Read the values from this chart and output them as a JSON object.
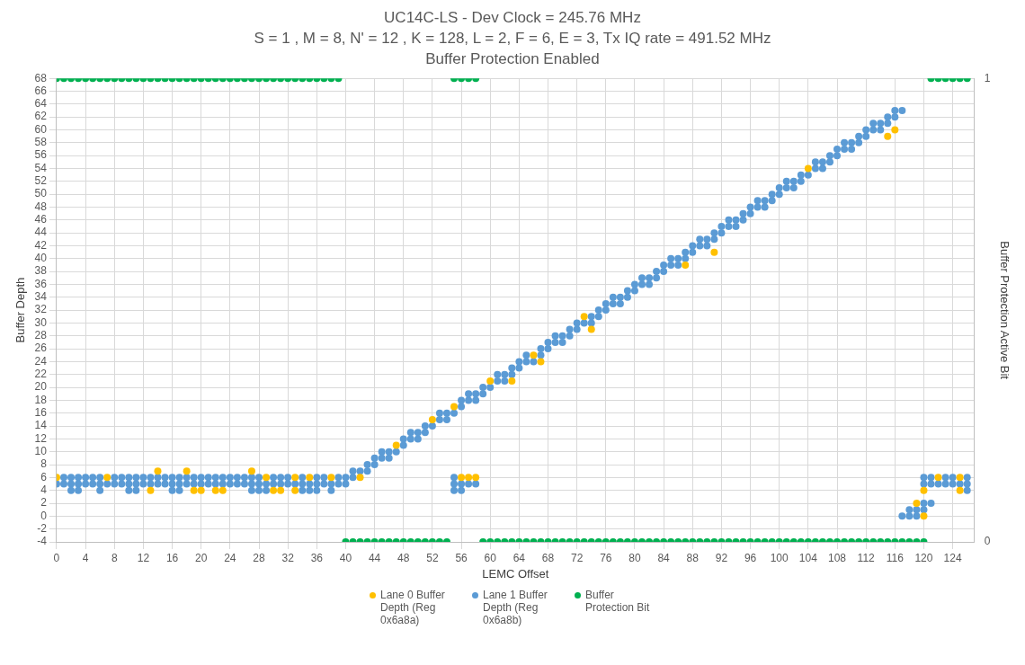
{
  "chart_data": {
    "type": "scatter",
    "title": "UC14C-LS - Dev Clock = 245.76 MHz",
    "subtitle": "S = 1 , M = 8, N' = 12 , K = 128, L = 2, F = 6, E = 3, Tx IQ rate = 491.52 MHz",
    "annotations": [
      "Buffer Protection Enabled"
    ],
    "xlabel": "LEMC Offset",
    "ylabel": "Buffer Depth",
    "y2label": "Buffer Protection Active Bit",
    "xlim": [
      0,
      127
    ],
    "xticks": [
      0,
      4,
      8,
      12,
      16,
      20,
      24,
      28,
      32,
      36,
      40,
      44,
      48,
      52,
      56,
      60,
      64,
      68,
      72,
      76,
      80,
      84,
      88,
      92,
      96,
      100,
      104,
      108,
      112,
      116,
      120,
      124
    ],
    "ylim": [
      -4,
      68
    ],
    "yticks": [
      -4,
      -2,
      0,
      2,
      4,
      6,
      8,
      10,
      12,
      14,
      16,
      18,
      20,
      22,
      24,
      26,
      28,
      30,
      32,
      34,
      36,
      38,
      40,
      42,
      44,
      46,
      48,
      50,
      52,
      54,
      56,
      58,
      60,
      62,
      64,
      66,
      68
    ],
    "y2lim": [
      0,
      1
    ],
    "y2ticks": [
      0,
      1
    ],
    "grid": true,
    "legend": "bottom",
    "marker": "circle",
    "series": [
      {
        "name": "Lane 0 Buffer Depth (Reg 0x6a8a)",
        "color": "#ffc000",
        "x": [
          0,
          7,
          13,
          14,
          18,
          19,
          20,
          22,
          23,
          27,
          29,
          30,
          31,
          33,
          33,
          35,
          38,
          42,
          47,
          52,
          55,
          56,
          57,
          58,
          60,
          63,
          66,
          67,
          73,
          74,
          87,
          91,
          104,
          115,
          116,
          119,
          120,
          120,
          122,
          125,
          125
        ],
        "values": [
          6,
          6,
          4,
          7,
          7,
          4,
          4,
          4,
          4,
          7,
          6,
          4,
          4,
          6,
          4,
          6,
          6,
          6,
          11,
          15,
          17,
          6,
          6,
          6,
          21,
          21,
          25,
          24,
          31,
          29,
          39,
          41,
          54,
          59,
          60,
          2,
          0,
          4,
          6,
          6,
          4
        ]
      },
      {
        "name": "Lane 1 Buffer Depth (Reg 0x6a8b)",
        "color": "#5b9bd5",
        "x": [
          0,
          1,
          1,
          2,
          2,
          2,
          3,
          3,
          3,
          4,
          4,
          5,
          5,
          6,
          6,
          6,
          7,
          8,
          8,
          9,
          9,
          10,
          10,
          10,
          11,
          11,
          11,
          12,
          12,
          13,
          13,
          14,
          14,
          15,
          15,
          16,
          16,
          16,
          17,
          17,
          17,
          18,
          18,
          19,
          19,
          20,
          20,
          21,
          21,
          22,
          22,
          23,
          23,
          24,
          24,
          25,
          25,
          26,
          26,
          27,
          27,
          27,
          28,
          28,
          28,
          29,
          29,
          30,
          30,
          31,
          31,
          32,
          32,
          33,
          34,
          34,
          34,
          35,
          35,
          36,
          36,
          36,
          37,
          37,
          38,
          38,
          39,
          39,
          40,
          40,
          41,
          41,
          42,
          43,
          43,
          44,
          44,
          45,
          45,
          46,
          46,
          47,
          48,
          48,
          49,
          49,
          50,
          50,
          51,
          51,
          52,
          53,
          53,
          54,
          54,
          55,
          55,
          55,
          55,
          56,
          56,
          56,
          56,
          57,
          57,
          57,
          58,
          58,
          58,
          59,
          59,
          60,
          61,
          61,
          62,
          62,
          63,
          63,
          64,
          64,
          65,
          65,
          66,
          67,
          67,
          68,
          68,
          69,
          69,
          70,
          70,
          71,
          71,
          72,
          72,
          73,
          74,
          74,
          75,
          75,
          76,
          76,
          77,
          77,
          78,
          78,
          79,
          79,
          80,
          80,
          81,
          81,
          82,
          82,
          83,
          83,
          84,
          84,
          85,
          85,
          86,
          86,
          87,
          87,
          88,
          88,
          89,
          89,
          90,
          90,
          91,
          91,
          92,
          92,
          93,
          93,
          94,
          94,
          95,
          95,
          96,
          96,
          97,
          97,
          98,
          98,
          99,
          99,
          100,
          100,
          101,
          101,
          102,
          102,
          103,
          103,
          104,
          105,
          105,
          106,
          106,
          107,
          107,
          108,
          108,
          109,
          109,
          110,
          110,
          111,
          111,
          112,
          112,
          113,
          113,
          114,
          114,
          115,
          115,
          116,
          116,
          117,
          117,
          118,
          118,
          119,
          119,
          120,
          120,
          120,
          120,
          121,
          121,
          121,
          122,
          123,
          123,
          124,
          124,
          125,
          126,
          126,
          126
        ],
        "values": [
          5,
          5,
          6,
          5,
          6,
          4,
          5,
          6,
          4,
          5,
          6,
          5,
          6,
          5,
          6,
          4,
          5,
          5,
          6,
          5,
          6,
          5,
          6,
          4,
          5,
          6,
          4,
          5,
          6,
          5,
          6,
          5,
          6,
          5,
          6,
          5,
          6,
          4,
          5,
          6,
          4,
          5,
          6,
          5,
          6,
          5,
          6,
          5,
          6,
          5,
          6,
          5,
          6,
          5,
          6,
          5,
          6,
          5,
          6,
          5,
          6,
          4,
          5,
          6,
          4,
          5,
          4,
          5,
          6,
          5,
          6,
          5,
          6,
          5,
          5,
          6,
          4,
          5,
          4,
          5,
          6,
          4,
          5,
          6,
          5,
          4,
          5,
          6,
          5,
          6,
          6,
          7,
          7,
          7,
          8,
          8,
          9,
          9,
          10,
          9,
          10,
          10,
          11,
          12,
          12,
          13,
          12,
          13,
          13,
          14,
          14,
          15,
          16,
          15,
          16,
          16,
          6,
          5,
          4,
          17,
          18,
          5,
          4,
          18,
          19,
          5,
          18,
          19,
          5,
          19,
          20,
          20,
          21,
          22,
          21,
          22,
          22,
          23,
          23,
          24,
          24,
          25,
          24,
          25,
          26,
          26,
          27,
          27,
          28,
          27,
          28,
          28,
          29,
          29,
          30,
          30,
          30,
          31,
          31,
          32,
          32,
          33,
          33,
          34,
          33,
          34,
          34,
          35,
          35,
          36,
          36,
          37,
          36,
          37,
          37,
          38,
          38,
          39,
          39,
          40,
          39,
          40,
          40,
          41,
          41,
          42,
          42,
          43,
          42,
          43,
          43,
          44,
          44,
          45,
          45,
          46,
          45,
          46,
          46,
          47,
          47,
          48,
          48,
          49,
          48,
          49,
          49,
          50,
          50,
          51,
          51,
          52,
          51,
          52,
          52,
          53,
          53,
          54,
          55,
          54,
          55,
          55,
          56,
          56,
          57,
          57,
          58,
          57,
          58,
          58,
          59,
          59,
          60,
          60,
          61,
          60,
          61,
          61,
          62,
          62,
          63,
          63,
          0,
          0,
          1,
          0,
          1,
          1,
          2,
          5,
          6,
          2,
          5,
          6,
          5,
          5,
          6,
          5,
          6,
          5,
          4,
          5,
          6
        ]
      },
      {
        "name": "Buffer Protection Bit",
        "color": "#00b050",
        "axis": "y2",
        "x": [
          0,
          1,
          2,
          3,
          4,
          5,
          6,
          7,
          8,
          9,
          10,
          11,
          12,
          13,
          14,
          15,
          16,
          17,
          18,
          19,
          20,
          21,
          22,
          23,
          24,
          25,
          26,
          27,
          28,
          29,
          30,
          31,
          32,
          33,
          34,
          35,
          36,
          37,
          38,
          39,
          40,
          41,
          42,
          43,
          44,
          45,
          46,
          47,
          48,
          49,
          50,
          51,
          52,
          53,
          54,
          55,
          56,
          57,
          58,
          59,
          60,
          61,
          62,
          63,
          64,
          65,
          66,
          67,
          68,
          69,
          70,
          71,
          72,
          73,
          74,
          75,
          76,
          77,
          78,
          79,
          80,
          81,
          82,
          83,
          84,
          85,
          86,
          87,
          88,
          89,
          90,
          91,
          92,
          93,
          94,
          95,
          96,
          97,
          98,
          99,
          100,
          101,
          102,
          103,
          104,
          105,
          106,
          107,
          108,
          109,
          110,
          111,
          112,
          113,
          114,
          115,
          116,
          117,
          118,
          119,
          120,
          121,
          122,
          123,
          124,
          125,
          126
        ],
        "values": [
          1,
          1,
          1,
          1,
          1,
          1,
          1,
          1,
          1,
          1,
          1,
          1,
          1,
          1,
          1,
          1,
          1,
          1,
          1,
          1,
          1,
          1,
          1,
          1,
          1,
          1,
          1,
          1,
          1,
          1,
          1,
          1,
          1,
          1,
          1,
          1,
          1,
          1,
          1,
          1,
          0,
          0,
          0,
          0,
          0,
          0,
          0,
          0,
          0,
          0,
          0,
          0,
          0,
          0,
          0,
          1,
          1,
          1,
          1,
          0,
          0,
          0,
          0,
          0,
          0,
          0,
          0,
          0,
          0,
          0,
          0,
          0,
          0,
          0,
          0,
          0,
          0,
          0,
          0,
          0,
          0,
          0,
          0,
          0,
          0,
          0,
          0,
          0,
          0,
          0,
          0,
          0,
          0,
          0,
          0,
          0,
          0,
          0,
          0,
          0,
          0,
          0,
          0,
          0,
          0,
          0,
          0,
          0,
          0,
          0,
          0,
          0,
          0,
          0,
          0,
          0,
          0,
          0,
          0,
          0,
          0,
          1,
          1,
          1,
          1,
          1,
          1
        ]
      }
    ]
  }
}
